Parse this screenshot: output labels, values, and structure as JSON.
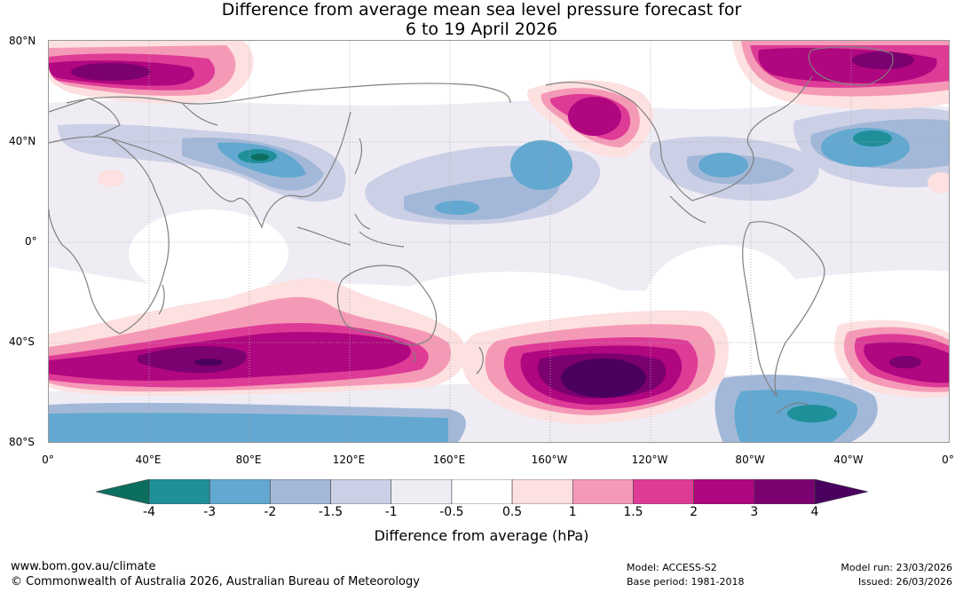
{
  "title": {
    "line1": "Difference from average mean sea level pressure forecast for",
    "line2": "6 to 19 April 2026"
  },
  "map": {
    "lat_labels": [
      "80°N",
      "40°N",
      "0°",
      "40°S",
      "80°S"
    ],
    "lon_labels": [
      "0°",
      "40°E",
      "80°E",
      "120°E",
      "160°E",
      "160°W",
      "120°W",
      "80°W",
      "40°W",
      "0°"
    ],
    "colors": {
      "ocean": "#ffffff",
      "coastline": "#808080",
      "grid": "#aaaaaa"
    }
  },
  "colorbar": {
    "ticks": [
      "-4",
      "-3",
      "-2",
      "-1.5",
      "-1",
      "-0.5",
      "0.5",
      "1",
      "1.5",
      "2",
      "3",
      "4"
    ],
    "colors": [
      "#0c6e5f",
      "#1f8f99",
      "#62a8d0",
      "#a3b8d8",
      "#ccd0e6",
      "#efecf4",
      "#ffffff",
      "#fde0e0",
      "#f59ab6",
      "#de3b97",
      "#b0067f",
      "#7b0070",
      "#4a005f"
    ],
    "label": "Difference from average (hPa)"
  },
  "footer": {
    "url": "www.bom.gov.au/climate",
    "copyright": "© Commonwealth of Australia 2026, Australian Bureau of Meteorology",
    "model": "Model: ACCESS-S2",
    "base_period": "Base period: 1981-2018",
    "model_run": "Model run: 23/03/2026",
    "issued": "Issued: 26/03/2026"
  }
}
